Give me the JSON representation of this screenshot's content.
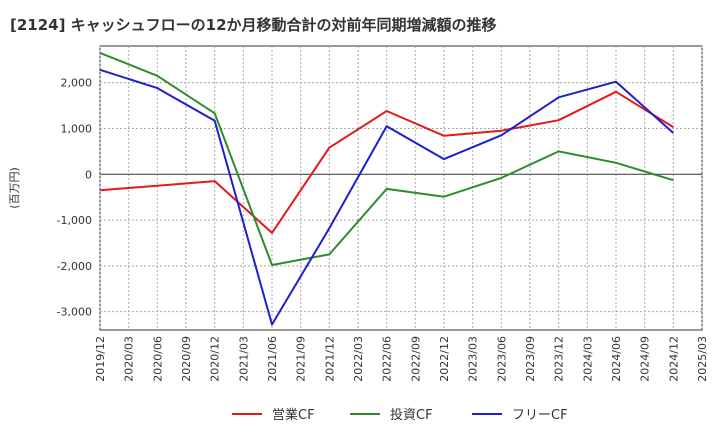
{
  "chart_data": {
    "type": "line",
    "title": "[2124]  キャッシュフローの12か月移動合計の対前年同期増減額の推移",
    "ylabel": "(百万円)",
    "xlabel": "",
    "ylim": [
      -3400,
      2800
    ],
    "yticks": [
      -3000,
      -2000,
      -1000,
      0,
      1000,
      2000
    ],
    "ytick_labels": [
      "-3,000",
      "-2,000",
      "-1,000",
      "0",
      "1,000",
      "2,000"
    ],
    "x_ticks": [
      "2019/12",
      "2020/03",
      "2020/06",
      "2020/09",
      "2020/12",
      "2021/03",
      "2021/06",
      "2021/09",
      "2021/12",
      "2022/03",
      "2022/06",
      "2022/09",
      "2022/12",
      "2023/03",
      "2023/06",
      "2023/09",
      "2023/12",
      "2024/03",
      "2024/06",
      "2024/09",
      "2024/12",
      "2025/03"
    ],
    "grid": true,
    "legend_position": "bottom",
    "series": [
      {
        "name": "営業CF",
        "color": "#e31a1c",
        "x": [
          "2019/12",
          "2020/06",
          "2020/12",
          "2021/06",
          "2021/12",
          "2022/06",
          "2022/12",
          "2023/06",
          "2023/12",
          "2024/06",
          "2024/12"
        ],
        "values": [
          -350,
          -250,
          -150,
          -1280,
          580,
          1380,
          840,
          950,
          1180,
          1800,
          1030
        ]
      },
      {
        "name": "投資CF",
        "color": "#2e8b2e",
        "x": [
          "2019/12",
          "2020/06",
          "2020/12",
          "2021/06",
          "2021/12",
          "2022/06",
          "2022/12",
          "2023/06",
          "2023/12",
          "2024/06",
          "2024/12"
        ],
        "values": [
          2650,
          2150,
          1330,
          -1980,
          -1750,
          -320,
          -490,
          -80,
          500,
          250,
          -130
        ]
      },
      {
        "name": "フリーCF",
        "color": "#1f1fcf",
        "x": [
          "2019/12",
          "2020/06",
          "2020/12",
          "2021/06",
          "2021/12",
          "2022/06",
          "2022/12",
          "2023/06",
          "2023/12",
          "2024/06",
          "2024/12"
        ],
        "values": [
          2280,
          1880,
          1170,
          -3280,
          -1180,
          1050,
          330,
          850,
          1680,
          2020,
          900
        ]
      }
    ]
  }
}
